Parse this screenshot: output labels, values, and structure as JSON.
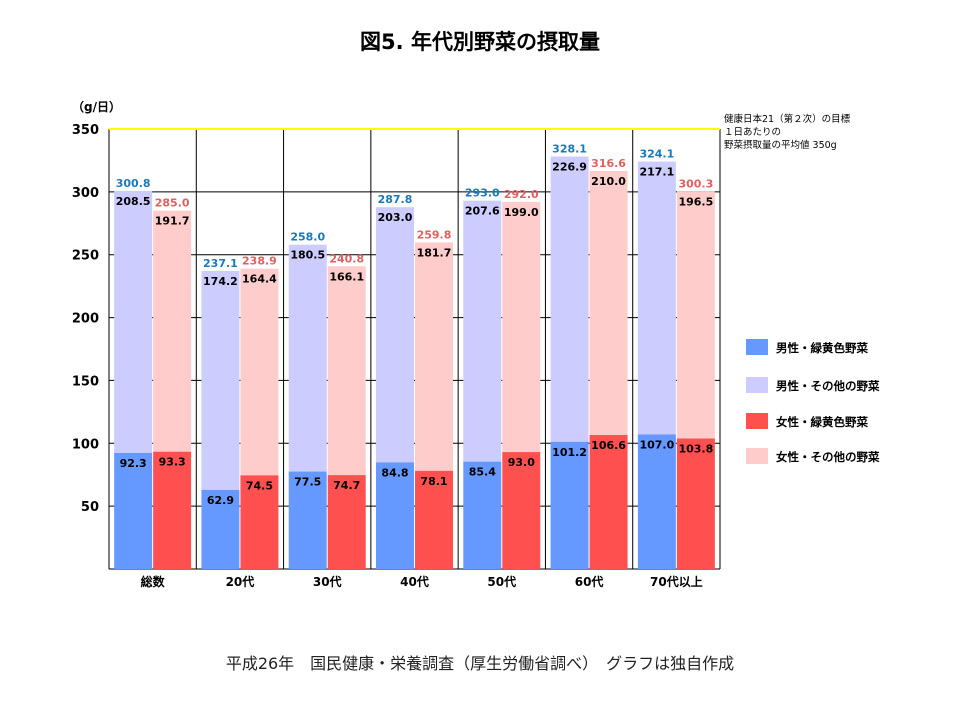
{
  "title": "図5. 年代別野菜の摂取量",
  "footer": "平成26年　国民健康・栄養調査（厚生労働省調べ）　グラフは独自作成",
  "target_note": {
    "lines": [
      "健康日本21（第２次）の目標",
      "１日あたりの",
      "野菜摂取量の平均値 350g"
    ]
  },
  "colors": {
    "male_green": "#6699ff",
    "male_other": "#ccccff",
    "female_green": "#ff5050",
    "female_other": "#ffcccc",
    "male_total_label": "#1a7ab8",
    "female_total_label": "#e06060",
    "target_line": "#ffff00"
  },
  "chart_data": {
    "type": "bar",
    "stacked": true,
    "unit_label": "（g/日）",
    "categories": [
      "総数",
      "20代",
      "30代",
      "40代",
      "50代",
      "60代",
      "70代以上"
    ],
    "ylim": [
      0,
      350
    ],
    "yticks": [
      50,
      100,
      150,
      200,
      250,
      300,
      350
    ],
    "target_value": 350,
    "grid": true,
    "legend_position": "right",
    "series": [
      {
        "name": "男性・緑黄色野菜",
        "group": "male",
        "values": [
          92.3,
          62.9,
          77.5,
          84.8,
          85.4,
          101.2,
          107.0
        ]
      },
      {
        "name": "男性・その他の野菜",
        "group": "male",
        "values": [
          208.5,
          174.2,
          180.5,
          203.0,
          207.6,
          226.9,
          217.1
        ]
      },
      {
        "name": "女性・緑黄色野菜",
        "group": "female",
        "values": [
          93.3,
          74.5,
          74.7,
          78.1,
          93.0,
          106.6,
          103.8
        ]
      },
      {
        "name": "女性・その他の野菜",
        "group": "female",
        "values": [
          191.7,
          164.4,
          166.1,
          181.7,
          199.0,
          210.0,
          196.5
        ]
      }
    ],
    "totals": {
      "male": [
        "300.8",
        "237.1",
        "258.0",
        "287.8",
        "293.0",
        "328.1",
        "324.1"
      ],
      "female": [
        "285.0",
        "238.9",
        "240.8",
        "259.8",
        "292.0",
        "316.6",
        "300.3"
      ]
    },
    "value_labels": {
      "male_green": [
        "92.3",
        "62.9",
        "77.5",
        "84.8",
        "85.4",
        "101.2",
        "107.0"
      ],
      "male_other": [
        "208.5",
        "174.2",
        "180.5",
        "203.0",
        "207.6",
        "226.9",
        "217.1"
      ],
      "female_green": [
        "93.3",
        "74.5",
        "74.7",
        "78.1",
        "93.0",
        "106.6",
        "103.8"
      ],
      "female_other": [
        "191.7",
        "164.4",
        "166.1",
        "181.7",
        "199.0",
        "210.0",
        "196.5"
      ]
    }
  },
  "legend": [
    {
      "label": "男性・緑黄色野菜",
      "color": "#6699ff"
    },
    {
      "label": "男性・その他の野菜",
      "color": "#ccccff"
    },
    {
      "label": "女性・緑黄色野菜",
      "color": "#ff5050"
    },
    {
      "label": "女性・その他の野菜",
      "color": "#ffcccc"
    }
  ]
}
